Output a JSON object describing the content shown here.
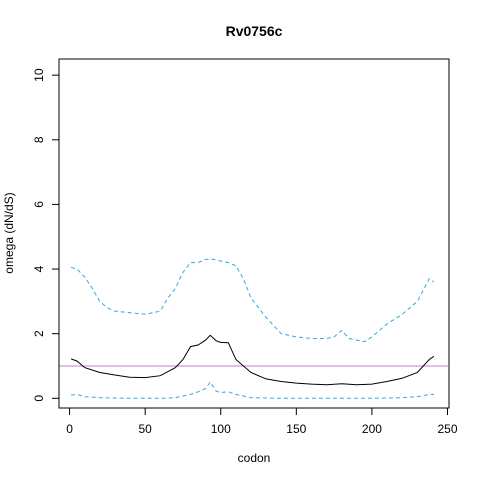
{
  "chart_data": {
    "type": "line",
    "title": "Rv0756c",
    "xlabel": "codon",
    "ylabel": "omega (dN/dS)",
    "xlim": [
      -7,
      251
    ],
    "ylim": [
      -0.3,
      10.5
    ],
    "x_ticks": [
      0,
      50,
      100,
      150,
      200,
      250
    ],
    "y_ticks": [
      0,
      2,
      4,
      6,
      8,
      10
    ],
    "x_tick_labels": [
      "0",
      "50",
      "100",
      "150",
      "200",
      "250"
    ],
    "y_tick_labels": [
      "0",
      "2",
      "4",
      "6",
      "8",
      "10"
    ],
    "reference_line": {
      "y": 1,
      "color": "#cc77cc"
    },
    "series": [
      {
        "style": "solid",
        "color": "#000000",
        "x": [
          1,
          5,
          10,
          20,
          30,
          40,
          50,
          60,
          70,
          75,
          80,
          85,
          90,
          93,
          97,
          100,
          105,
          110,
          120,
          130,
          140,
          150,
          160,
          170,
          180,
          190,
          200,
          210,
          220,
          230,
          238,
          241
        ],
        "y": [
          1.22,
          1.15,
          0.95,
          0.8,
          0.72,
          0.65,
          0.64,
          0.7,
          0.95,
          1.2,
          1.6,
          1.65,
          1.8,
          1.95,
          1.78,
          1.73,
          1.72,
          1.2,
          0.8,
          0.6,
          0.52,
          0.47,
          0.44,
          0.42,
          0.45,
          0.42,
          0.44,
          0.52,
          0.62,
          0.8,
          1.2,
          1.3
        ]
      },
      {
        "style": "dashed",
        "color": "#33aadd",
        "x": [
          1,
          5,
          10,
          15,
          20,
          25,
          30,
          40,
          50,
          60,
          65,
          70,
          75,
          80,
          85,
          90,
          95,
          100,
          105,
          110,
          115,
          120,
          130,
          140,
          150,
          160,
          170,
          175,
          180,
          185,
          190,
          195,
          200,
          210,
          220,
          230,
          238,
          241
        ],
        "y": [
          4.05,
          4.0,
          3.75,
          3.4,
          3.0,
          2.8,
          2.7,
          2.65,
          2.6,
          2.7,
          3.1,
          3.4,
          3.9,
          4.2,
          4.2,
          4.3,
          4.3,
          4.25,
          4.2,
          4.1,
          3.7,
          3.1,
          2.5,
          2.0,
          1.9,
          1.85,
          1.85,
          1.9,
          2.1,
          1.85,
          1.8,
          1.75,
          1.9,
          2.3,
          2.6,
          3.0,
          3.7,
          3.6
        ]
      },
      {
        "style": "dashed",
        "color": "#33aadd",
        "x": [
          1,
          5,
          10,
          20,
          40,
          60,
          70,
          80,
          85,
          90,
          93,
          97,
          100,
          105,
          110,
          120,
          140,
          160,
          180,
          200,
          220,
          230,
          238,
          241
        ],
        "y": [
          0.1,
          0.12,
          0.05,
          0.02,
          0.0,
          0.0,
          0.02,
          0.12,
          0.2,
          0.3,
          0.5,
          0.22,
          0.18,
          0.2,
          0.12,
          0.02,
          0.0,
          0.0,
          0.0,
          0.0,
          0.02,
          0.05,
          0.12,
          0.12
        ]
      }
    ]
  }
}
